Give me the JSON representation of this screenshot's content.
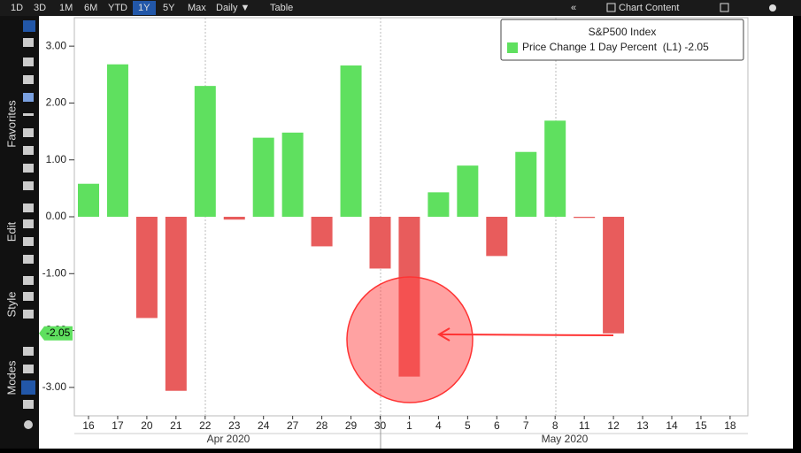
{
  "toolbar": {
    "ranges": [
      "1D",
      "3D",
      "1M",
      "6M",
      "YTD",
      "1Y",
      "5Y",
      "Max"
    ],
    "active_range": "1Y",
    "frequency": "Daily ▼",
    "view": "Table",
    "collapse": "«",
    "menu": "Chart Content"
  },
  "side_panel": [
    "Favorites",
    "Edit",
    "Style",
    "Modes"
  ],
  "chart_data": {
    "type": "bar",
    "legend_title": "S&P500 Index",
    "series_name": "Price Change 1 Day Percent  (L1) -2.05",
    "categories": [
      "16",
      "17",
      "20",
      "21",
      "22",
      "23",
      "24",
      "27",
      "28",
      "29",
      "30",
      "1",
      "4",
      "5",
      "6",
      "7",
      "8",
      "11",
      "12",
      "13",
      "14",
      "15",
      "18"
    ],
    "values": [
      0.58,
      2.68,
      -1.78,
      -3.06,
      2.3,
      -0.05,
      1.39,
      1.48,
      -0.52,
      2.66,
      -0.91,
      -2.81,
      0.43,
      0.9,
      -0.69,
      1.14,
      1.69,
      -0.02,
      -2.05,
      null,
      null,
      null,
      null
    ],
    "month_labels": [
      "Apr 2020",
      "May 2020"
    ],
    "positive_color": "#5fe05f",
    "negative_color": "#e85c5c",
    "last_value": -2.05,
    "ylim": [
      -3.5,
      3.5
    ],
    "yticks": [
      {
        "value": 3,
        "label": "3.00"
      },
      {
        "value": 2,
        "label": "2.00"
      },
      {
        "value": 1,
        "label": "1.00"
      },
      {
        "value": 0,
        "label": "0.00"
      },
      {
        "value": -1,
        "label": "-1.00"
      },
      {
        "value": -2,
        "label": "-2.00"
      },
      {
        "value": -3,
        "label": "-3.00"
      }
    ]
  }
}
